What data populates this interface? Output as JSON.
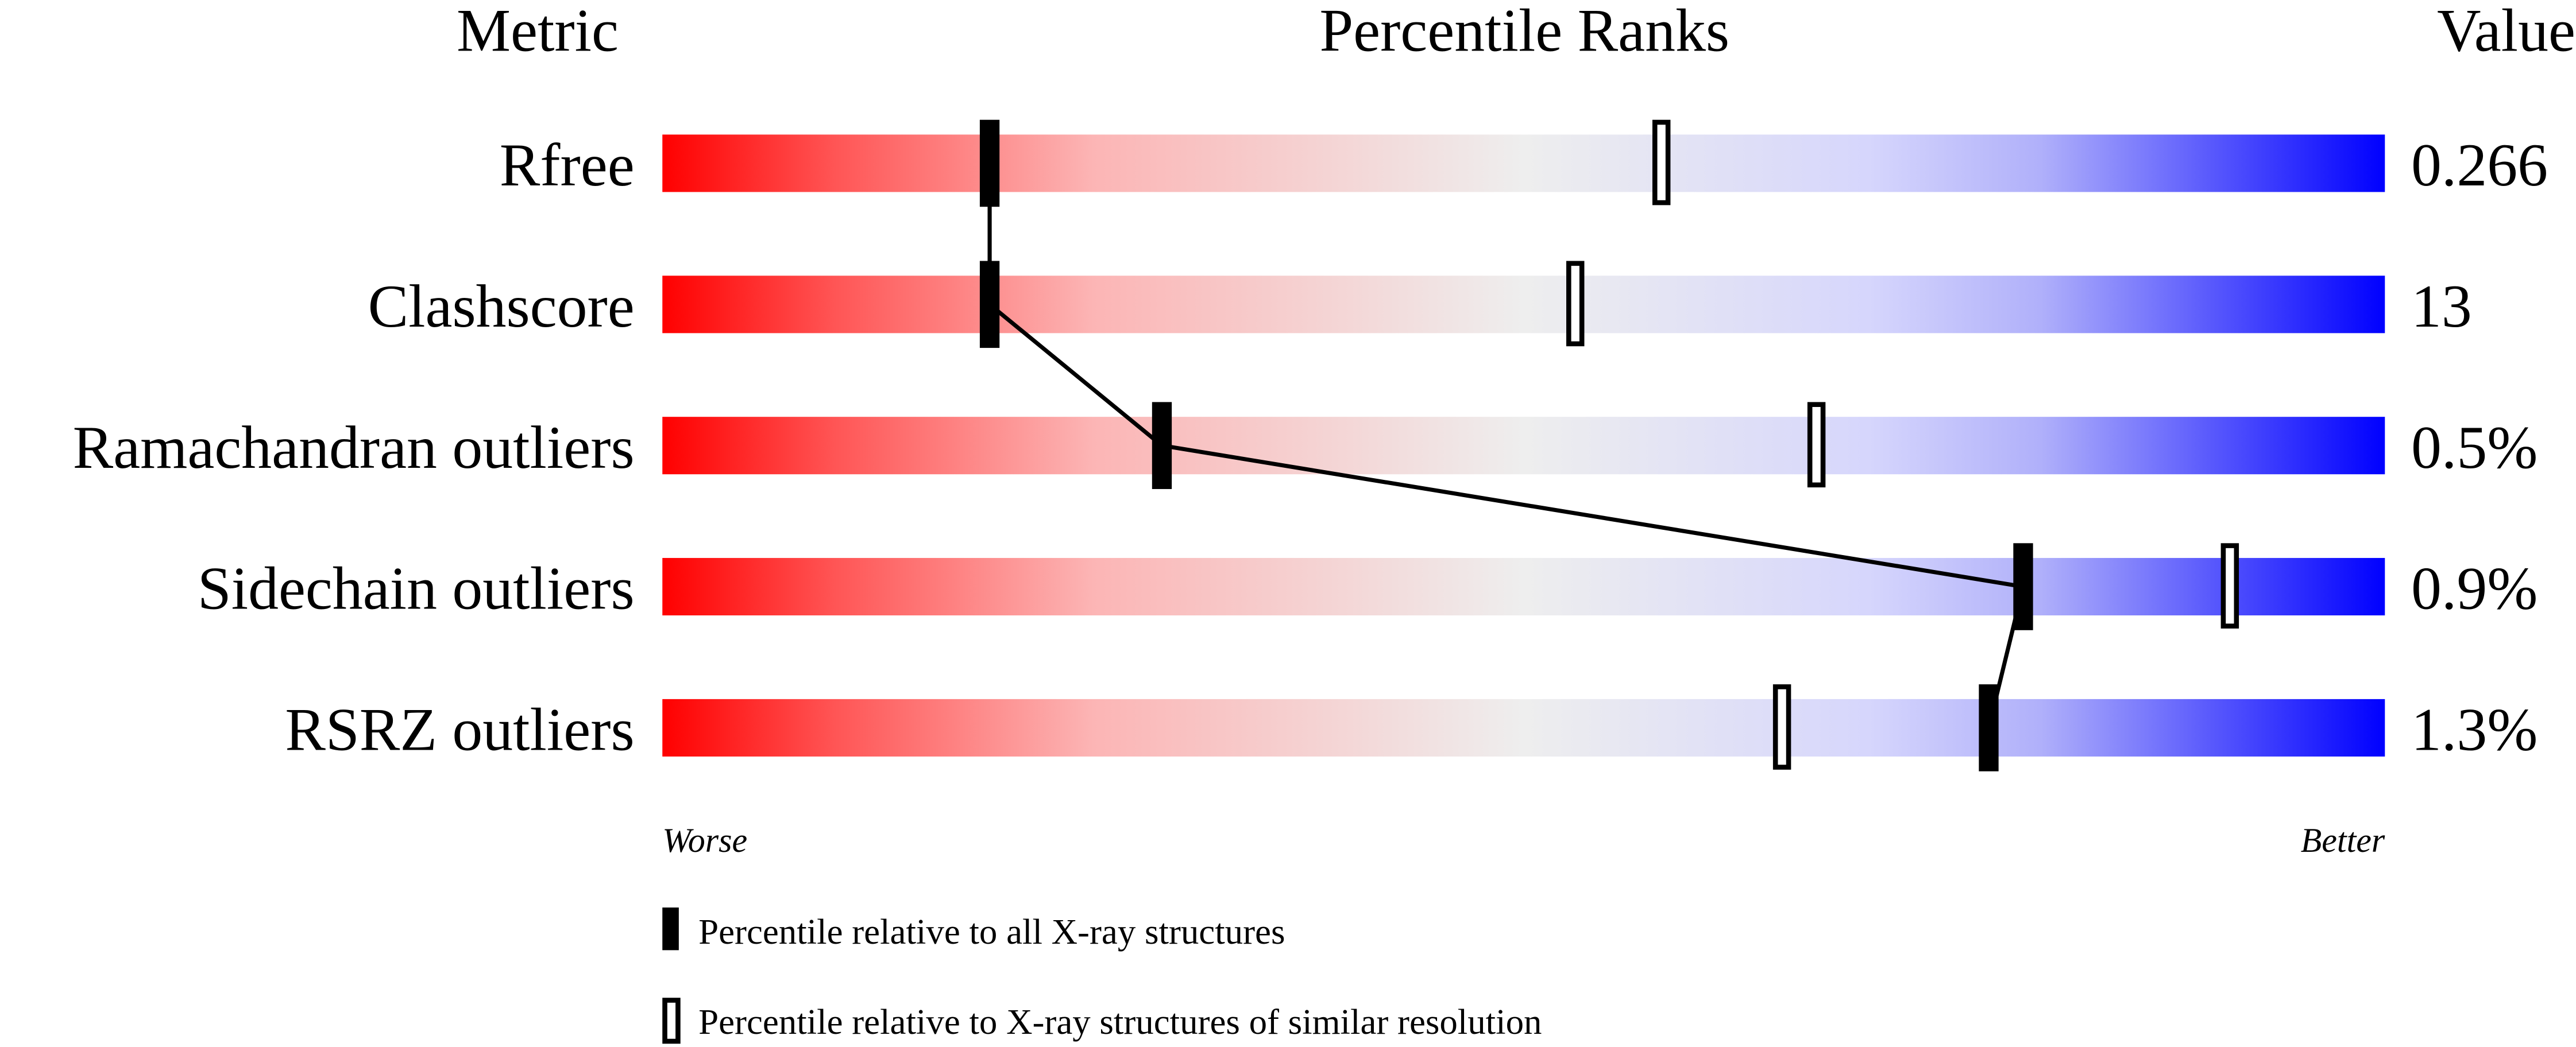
{
  "chart_data": {
    "type": "percentile-slider",
    "headers": {
      "metric": "Metric",
      "ranks": "Percentile Ranks",
      "value": "Value"
    },
    "xlim": [
      0,
      100
    ],
    "axis_labels": {
      "left": "Worse",
      "right": "Better"
    },
    "gradient_colors": {
      "worse": "#ff0000",
      "middle": "#eeeeee",
      "better": "#0000ff"
    },
    "metrics": [
      {
        "name": "Rfree",
        "value": "0.266",
        "percentile_all": 19,
        "percentile_similar": 58
      },
      {
        "name": "Clashscore",
        "value": "13",
        "percentile_all": 19,
        "percentile_similar": 53
      },
      {
        "name": "Ramachandran outliers",
        "value": "0.5%",
        "percentile_all": 29,
        "percentile_similar": 67
      },
      {
        "name": "Sidechain outliers",
        "value": "0.9%",
        "percentile_all": 79,
        "percentile_similar": 91
      },
      {
        "name": "RSRZ outliers",
        "value": "1.3%",
        "percentile_all": 77,
        "percentile_similar": 65
      }
    ],
    "legend": [
      {
        "marker": "filled",
        "label": "Percentile relative to all X-ray structures"
      },
      {
        "marker": "open",
        "label": "Percentile relative to X-ray structures of similar resolution"
      }
    ]
  }
}
